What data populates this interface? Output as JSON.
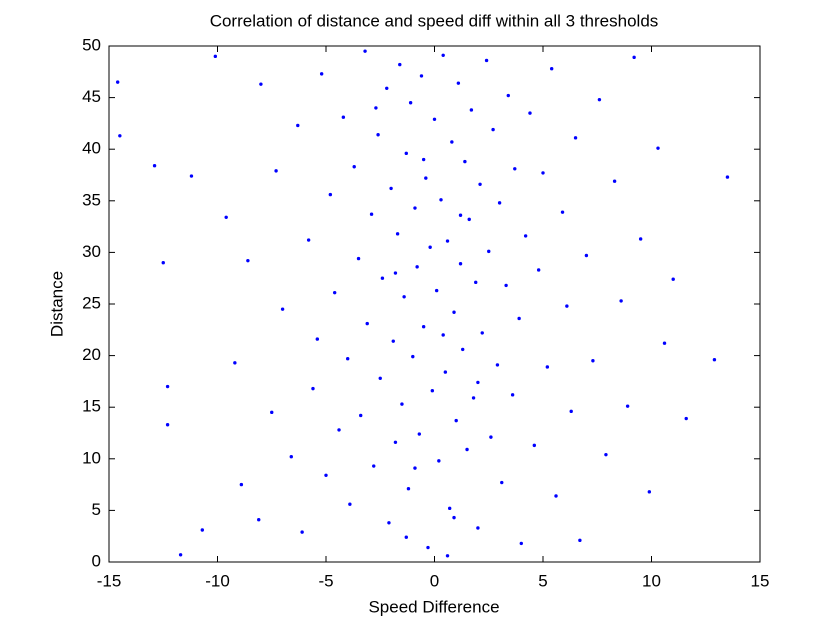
{
  "chart_data": {
    "type": "scatter",
    "title": "Correlation of distance and speed diff within all 3 thresholds",
    "x_label": "Speed Difference",
    "y_label": "Distance",
    "color": "#0000ff",
    "xlim": [
      -15,
      15
    ],
    "xticks": [
      -15,
      -10,
      -5,
      0,
      5,
      10,
      15
    ],
    "ylim": [
      0,
      50
    ],
    "yticks": [
      0,
      5,
      10,
      15,
      20,
      25,
      30,
      35,
      40,
      45,
      50
    ],
    "x": [
      -14.6,
      -14.5,
      -12.9,
      -12.5,
      -12.3,
      -12.3,
      -11.7,
      -11.2,
      -10.7,
      -10.1,
      -9.6,
      -9.2,
      -8.9,
      -8.6,
      -8.1,
      -8,
      -7.5,
      -7.3,
      -7,
      -6.6,
      -6.3,
      -6.1,
      -5.8,
      -5.6,
      -5.4,
      -5.2,
      -5,
      -4.8,
      -4.6,
      -4.4,
      -4.2,
      -4,
      -3.9,
      -3.7,
      -3.5,
      -3.4,
      -3.2,
      -3.1,
      -2.9,
      -2.8,
      -2.6,
      -2.5,
      -2.4,
      -2.2,
      -2.1,
      -2,
      -1.9,
      -1.8,
      -1.7,
      -1.6,
      -1.5,
      -1.4,
      -1.3,
      -1.2,
      -1.1,
      -1,
      -0.9,
      -0.8,
      -0.7,
      -0.6,
      -0.5,
      -0.4,
      -0.3,
      -0.2,
      -0.1,
      0,
      0.1,
      0.2,
      0.3,
      0.4,
      0.5,
      0.6,
      0.7,
      0.8,
      0.9,
      1,
      1.1,
      1.2,
      1.3,
      1.4,
      1.5,
      1.6,
      1.7,
      1.8,
      1.9,
      2,
      2.1,
      2.2,
      2.4,
      2.5,
      2.6,
      2.7,
      2.9,
      3,
      3.1,
      3.3,
      3.4,
      3.6,
      3.7,
      3.9,
      4,
      4.2,
      4.4,
      4.6,
      4.8,
      5,
      5.2,
      5.4,
      5.6,
      5.9,
      6.1,
      6.3,
      6.5,
      6.7,
      7,
      7.3,
      7.6,
      7.9,
      8.3,
      8.6,
      8.9,
      9.2,
      9.5,
      9.9,
      10.3,
      10.6,
      11,
      11.6,
      12.9,
      13.5,
      -1.3,
      0.6,
      -2.7,
      -0.5,
      1.2,
      -1.8,
      0.4,
      2,
      -0.9,
      0.9
    ],
    "values": [
      46.5,
      41.3,
      38.4,
      29,
      17,
      13.3,
      0.7,
      37.4,
      3.1,
      49,
      33.4,
      19.3,
      7.5,
      29.2,
      4.1,
      46.3,
      14.5,
      37.9,
      24.5,
      10.2,
      42.3,
      2.9,
      31.2,
      16.8,
      21.6,
      47.3,
      8.4,
      35.6,
      26.1,
      12.8,
      43.1,
      19.7,
      5.6,
      38.3,
      29.4,
      14.2,
      49.5,
      23.1,
      33.7,
      9.3,
      41.4,
      17.8,
      27.5,
      45.9,
      3.8,
      36.2,
      21.4,
      11.6,
      31.8,
      48.2,
      15.3,
      25.7,
      39.6,
      7.1,
      44.5,
      19.9,
      34.3,
      28.6,
      12.4,
      47.1,
      22.8,
      37.2,
      1.4,
      30.5,
      16.6,
      42.9,
      26.3,
      9.8,
      35.1,
      49.1,
      18.4,
      31.1,
      5.2,
      40.7,
      24.2,
      13.7,
      46.4,
      28.9,
      20.6,
      38.8,
      10.9,
      33.2,
      43.8,
      15.9,
      27.1,
      3.3,
      36.6,
      22.2,
      48.6,
      30.1,
      12.1,
      41.9,
      19.1,
      34.8,
      7.7,
      26.8,
      45.2,
      16.2,
      38.1,
      23.6,
      1.8,
      31.6,
      43.5,
      11.3,
      28.3,
      37.7,
      18.9,
      47.8,
      6.4,
      33.9,
      24.8,
      14.6,
      41.1,
      2.1,
      29.7,
      19.5,
      44.8,
      10.4,
      36.9,
      25.3,
      15.1,
      48.9,
      31.3,
      6.8,
      40.1,
      21.2,
      27.4,
      13.9,
      19.6,
      37.3,
      2.4,
      0.6,
      44,
      39,
      33.6,
      28,
      22,
      17.4,
      9.1,
      4.3
    ]
  }
}
